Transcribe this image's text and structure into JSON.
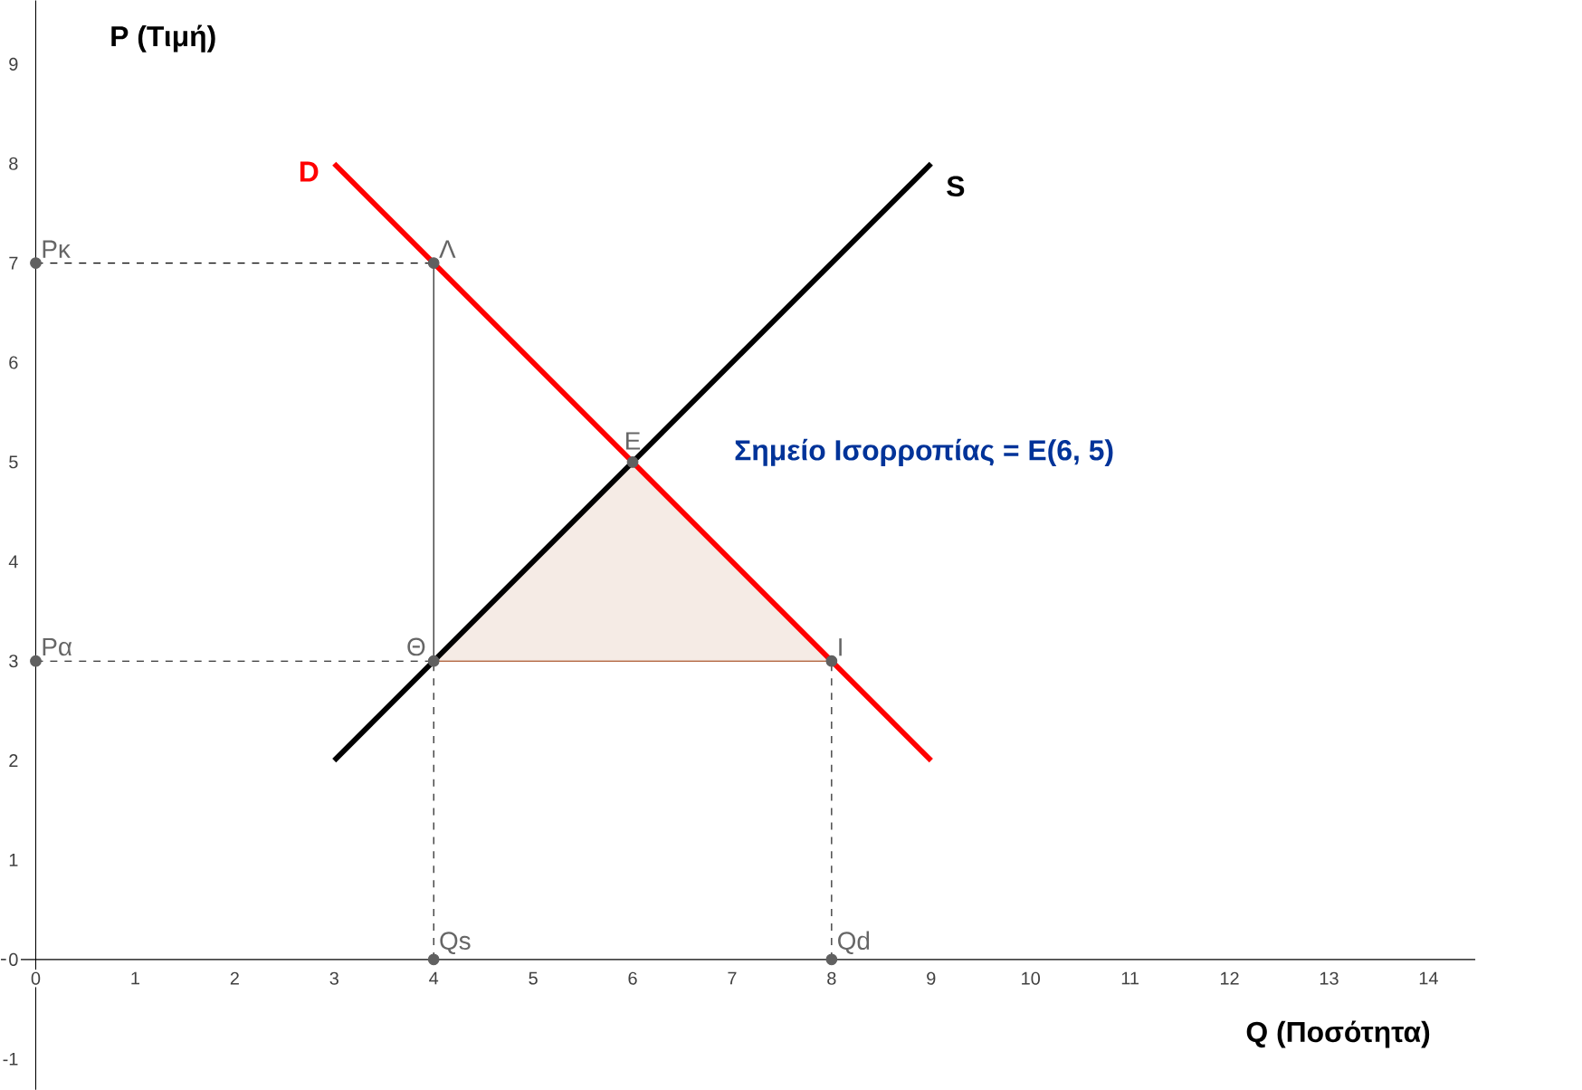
{
  "chart_data": {
    "type": "line",
    "xlabel": "Q (Ποσότητα)",
    "ylabel": "P (Τιμή)",
    "xlim": [
      -0.35,
      14.47
    ],
    "ylim": [
      -1.31,
      9.64
    ],
    "xticks": [
      0,
      1,
      2,
      3,
      4,
      5,
      6,
      7,
      8,
      9,
      10,
      11,
      12,
      13,
      14
    ],
    "yticks": [
      -1,
      0,
      1,
      2,
      3,
      4,
      5,
      6,
      7,
      8,
      9
    ],
    "grid": false,
    "series": [
      {
        "type": "area",
        "color": "#993300",
        "x": [
          4,
          6,
          8,
          4
        ],
        "values": [
          3,
          5,
          3,
          3
        ]
      },
      {
        "color": "#000000",
        "line_style": "dashed",
        "x": [
          0,
          4
        ],
        "values": [
          7,
          7
        ]
      },
      {
        "color": "#000000",
        "line_style": "dashed",
        "x": [
          0,
          4
        ],
        "values": [
          3,
          3
        ]
      },
      {
        "color": "#000000",
        "line_style": "dashed",
        "x": [
          4,
          4
        ],
        "values": [
          0,
          3
        ]
      },
      {
        "color": "#000000",
        "line_style": "dashed",
        "x": [
          8,
          8
        ],
        "values": [
          0,
          3
        ]
      },
      {
        "color": "#000000",
        "line_style": "solid",
        "x": [
          4,
          4
        ],
        "values": [
          3,
          7
        ]
      },
      {
        "name": "D",
        "color": "#ff0000",
        "line_style": "solid",
        "x": [
          3,
          9
        ],
        "values": [
          8,
          2
        ]
      },
      {
        "name": "S",
        "color": "#000000",
        "line_style": "solid",
        "x": [
          3,
          9
        ],
        "values": [
          2,
          8
        ]
      },
      {
        "type": "scatter",
        "color": "#606060",
        "marker": "circle",
        "x": [
          0,
          4,
          6,
          0,
          4,
          8,
          4,
          8
        ],
        "values": [
          7,
          7,
          5,
          3,
          3,
          3,
          0,
          0
        ]
      }
    ],
    "annotations": [
      {
        "text": "Pκ",
        "x": 0,
        "y": 7
      },
      {
        "text": "Λ",
        "x": 4,
        "y": 7
      },
      {
        "text": "E",
        "x": 6,
        "y": 5
      },
      {
        "text": "Pα",
        "x": 0,
        "y": 3
      },
      {
        "text": "Θ",
        "x": 4,
        "y": 3
      },
      {
        "text": "I",
        "x": 8,
        "y": 3
      },
      {
        "text": "Qs",
        "x": 4,
        "y": 0
      },
      {
        "text": "Qd",
        "x": 8,
        "y": 0
      },
      "Σημείο Ισορροπίας = E(6, 5)"
    ]
  }
}
